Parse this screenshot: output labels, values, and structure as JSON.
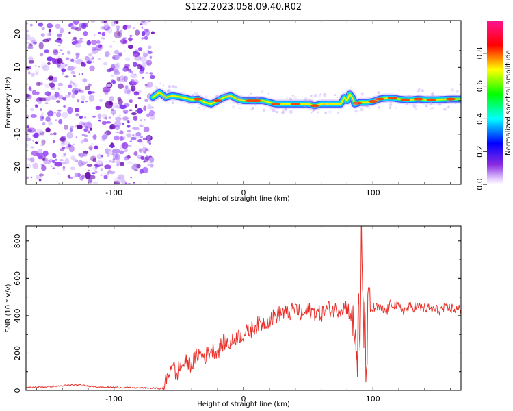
{
  "title": "S122.2023.058.09.40.R02",
  "chart_data": [
    {
      "type": "heatmap",
      "xlabel": "Height of straight line (km)",
      "ylabel": "Frequency (Hz)",
      "xlim": [
        -168,
        168
      ],
      "ylim": [
        -25,
        24
      ],
      "x_ticks": [
        -100,
        0,
        100
      ],
      "y_ticks": [
        -20,
        -10,
        0,
        10,
        20
      ],
      "noise_region_x": [
        -168,
        -70
      ],
      "ridge": {
        "x": [
          -70,
          -65,
          -60,
          -55,
          -50,
          -45,
          -40,
          -35,
          -30,
          -25,
          -20,
          -15,
          -10,
          -5,
          0,
          5,
          10,
          15,
          20,
          25,
          30,
          35,
          40,
          45,
          50,
          55,
          60,
          65,
          70,
          75,
          78,
          80,
          82,
          84,
          86,
          90,
          95,
          100,
          105,
          110,
          115,
          120,
          125,
          130,
          135,
          140,
          145,
          150,
          155,
          160,
          165,
          168
        ],
        "y": [
          1,
          2.5,
          1,
          1.5,
          1.2,
          0.8,
          0.3,
          0.5,
          -0.5,
          -1,
          0,
          1,
          1.5,
          0.5,
          0,
          0,
          0,
          0,
          -0.5,
          -1,
          -1,
          -1,
          -1,
          -1,
          -1,
          -1.5,
          -1,
          -1,
          -1,
          -1,
          1,
          0,
          2,
          1,
          -1,
          -0.5,
          -0.5,
          -0.2,
          0.5,
          0.8,
          0.8,
          0.5,
          0.3,
          0.3,
          0.5,
          0.3,
          0.3,
          0.3,
          0.4,
          0.5,
          0.5,
          0.5
        ]
      },
      "colorbar": {
        "label": "Normalized spectral amplitude",
        "range": [
          0,
          1
        ],
        "ticks": [
          "0.0",
          "0.2",
          "0.4",
          "0.6",
          "0.8"
        ],
        "colormap": "gist_rainbow_r"
      },
      "noise_color": "#8a2be2"
    },
    {
      "type": "line",
      "xlabel": "Height of straight line (km)",
      "ylabel": "SNR (10 * v/v)",
      "xlim": [
        -168,
        168
      ],
      "ylim": [
        0,
        880
      ],
      "x_ticks": [
        -100,
        0,
        100
      ],
      "y_ticks": [
        0,
        200,
        400,
        600,
        800
      ],
      "color": "#e8312a",
      "series": [
        {
          "x": [
            -168,
            -150,
            -130,
            -110,
            -90,
            -70,
            -62,
            -58,
            -55,
            -52,
            -50,
            -45,
            -40,
            -35,
            -30,
            -25,
            -20,
            -15,
            -10,
            -5,
            0,
            5,
            10,
            15,
            20,
            25,
            30,
            35,
            40,
            45,
            50,
            55,
            60,
            65,
            70,
            75,
            80,
            84,
            86,
            88,
            89,
            90,
            91,
            92,
            93,
            94,
            95,
            96,
            98,
            100,
            105,
            110,
            115,
            120,
            125,
            130,
            140,
            150,
            160,
            168
          ],
          "y": [
            15,
            20,
            30,
            18,
            15,
            12,
            10,
            80,
            160,
            70,
            120,
            150,
            140,
            200,
            180,
            220,
            210,
            260,
            250,
            290,
            300,
            320,
            350,
            360,
            380,
            400,
            420,
            410,
            440,
            400,
            430,
            420,
            410,
            440,
            430,
            440,
            450,
            380,
            300,
            200,
            400,
            120,
            800,
            600,
            350,
            250,
            150,
            380,
            430,
            440,
            440,
            420,
            470,
            440,
            430,
            450,
            440,
            430,
            440,
            430
          ]
        }
      ]
    }
  ]
}
